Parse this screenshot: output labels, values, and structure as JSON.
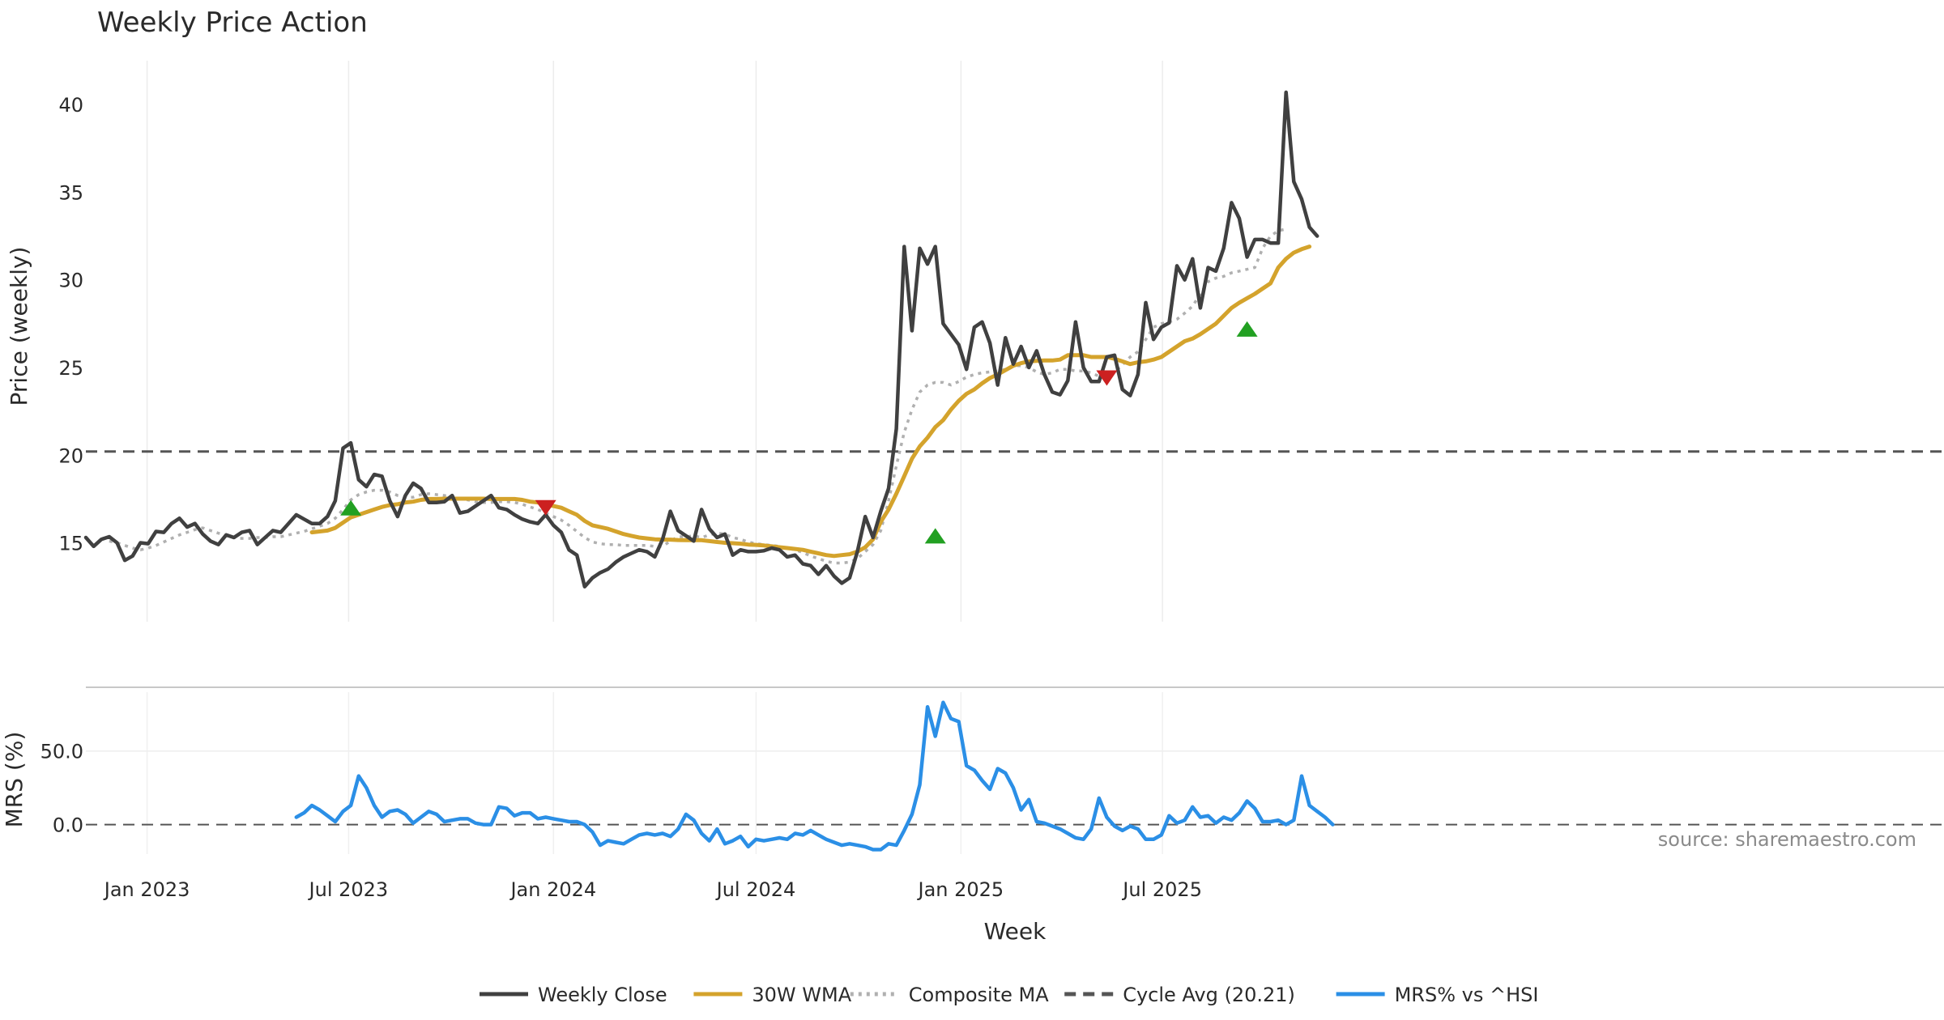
{
  "chart_data": {
    "type": "line",
    "title": "Weekly Price Action",
    "xlabel": "Week",
    "source": "source: sharemaestro.com",
    "x_start": "2022-11-07",
    "x_interval_days": 7,
    "x_ticks": [
      {
        "date": "2023-01-01",
        "label": "Jan 2023"
      },
      {
        "date": "2023-07-01",
        "label": "Jul 2023"
      },
      {
        "date": "2024-01-01",
        "label": "Jan 2024"
      },
      {
        "date": "2024-07-01",
        "label": "Jul 2024"
      },
      {
        "date": "2025-01-01",
        "label": "Jan 2025"
      },
      {
        "date": "2025-07-01",
        "label": "Jul 2025"
      }
    ],
    "price_panel": {
      "ylabel": "Price (weekly)",
      "ylim": [
        10.5,
        42.5
      ],
      "yticks": [
        15,
        20,
        25,
        30,
        35,
        40
      ],
      "grid": "vertical",
      "series": [
        {
          "name": "Weekly Close",
          "color": "#404040",
          "style": "solid",
          "values": [
            15.3,
            14.8,
            15.2,
            15.35,
            15.0,
            14.0,
            14.25,
            15.0,
            14.95,
            15.65,
            15.6,
            16.1,
            16.4,
            15.9,
            16.1,
            15.5,
            15.1,
            14.9,
            15.45,
            15.3,
            15.6,
            15.7,
            14.9,
            15.3,
            15.7,
            15.6,
            16.1,
            16.6,
            16.35,
            16.1,
            16.1,
            16.5,
            17.4,
            20.4,
            20.7,
            18.6,
            18.2,
            18.9,
            18.8,
            17.4,
            16.5,
            17.7,
            18.4,
            18.1,
            17.3,
            17.3,
            17.35,
            17.7,
            16.7,
            16.8,
            17.1,
            17.4,
            17.7,
            17.0,
            16.9,
            16.6,
            16.35,
            16.2,
            16.1,
            16.6,
            16.0,
            15.6,
            14.6,
            14.3,
            12.5,
            13.0,
            13.3,
            13.5,
            13.9,
            14.2,
            14.4,
            14.6,
            14.5,
            14.2,
            15.2,
            16.8,
            15.7,
            15.4,
            15.1,
            16.9,
            15.8,
            15.3,
            15.5,
            14.3,
            14.6,
            14.5,
            14.5,
            14.55,
            14.7,
            14.6,
            14.2,
            14.3,
            13.8,
            13.7,
            13.2,
            13.7,
            13.1,
            12.7,
            13.0,
            14.5,
            16.5,
            15.3,
            16.8,
            18.1,
            21.5,
            31.9,
            27.1,
            31.8,
            30.9,
            31.9,
            27.5,
            26.9,
            26.3,
            24.9,
            27.3,
            27.6,
            26.4,
            24.0,
            26.7,
            25.2,
            26.2,
            25.0,
            25.95,
            24.6,
            23.6,
            23.45,
            24.25,
            27.6,
            25.0,
            24.2,
            24.2,
            25.6,
            25.7,
            23.75,
            23.4,
            24.6,
            28.7,
            26.6,
            27.3,
            27.55,
            30.8,
            30.0,
            31.2,
            28.4,
            30.7,
            30.5,
            31.8,
            34.4,
            33.5,
            31.3,
            32.3,
            32.3,
            32.1,
            32.1,
            40.7,
            35.6,
            34.6,
            33.0,
            32.5
          ]
        },
        {
          "name": "30W WMA",
          "color": "#d4a32c",
          "style": "solid",
          "start_index": 29,
          "values": [
            15.6,
            15.65,
            15.7,
            15.85,
            16.15,
            16.45,
            16.6,
            16.75,
            16.9,
            17.05,
            17.15,
            17.2,
            17.3,
            17.35,
            17.45,
            17.5,
            17.5,
            17.52,
            17.52,
            17.52,
            17.52,
            17.52,
            17.52,
            17.5,
            17.5,
            17.5,
            17.5,
            17.45,
            17.35,
            17.3,
            17.2,
            17.1,
            17.0,
            16.8,
            16.6,
            16.25,
            16.0,
            15.9,
            15.8,
            15.65,
            15.5,
            15.4,
            15.3,
            15.25,
            15.2,
            15.18,
            15.18,
            15.16,
            15.15,
            15.15,
            15.15,
            15.1,
            15.05,
            15.0,
            14.98,
            14.95,
            14.9,
            14.88,
            14.85,
            14.8,
            14.75,
            14.7,
            14.65,
            14.6,
            14.5,
            14.4,
            14.3,
            14.25,
            14.3,
            14.35,
            14.5,
            14.75,
            15.2,
            16.2,
            16.9,
            17.8,
            18.8,
            19.8,
            20.5,
            21.0,
            21.6,
            22.0,
            22.6,
            23.1,
            23.5,
            23.75,
            24.1,
            24.4,
            24.6,
            24.85,
            25.1,
            25.25,
            25.35,
            25.38,
            25.4,
            25.4,
            25.45,
            25.7,
            25.7,
            25.7,
            25.6,
            25.6,
            25.6,
            25.5,
            25.35,
            25.2,
            25.3,
            25.35,
            25.45,
            25.6,
            25.9,
            26.2,
            26.5,
            26.65,
            26.9,
            27.2,
            27.5,
            27.95,
            28.4,
            28.7,
            28.95,
            29.2,
            29.5,
            29.8,
            30.7,
            31.2,
            31.55,
            31.75,
            31.9
          ]
        },
        {
          "name": "Composite MA",
          "color": "#b0b0b0",
          "style": "dotted",
          "start_index": 3,
          "values": [
            15.1,
            15.0,
            14.85,
            14.7,
            14.6,
            14.7,
            14.85,
            15.05,
            15.25,
            15.45,
            15.6,
            15.75,
            15.85,
            15.7,
            15.55,
            15.4,
            15.3,
            15.25,
            15.25,
            15.3,
            15.3,
            15.35,
            15.35,
            15.45,
            15.55,
            15.65,
            15.8,
            15.95,
            16.1,
            16.4,
            16.9,
            17.45,
            17.75,
            17.9,
            18.0,
            18.0,
            17.9,
            17.7,
            17.6,
            17.6,
            17.75,
            17.8,
            17.75,
            17.7,
            17.6,
            17.5,
            17.45,
            17.35,
            17.3,
            17.3,
            17.35,
            17.35,
            17.3,
            17.2,
            17.05,
            16.9,
            16.7,
            16.5,
            16.3,
            16.0,
            15.65,
            15.3,
            15.05,
            14.95,
            14.9,
            14.9,
            14.85,
            14.85,
            14.85,
            14.85,
            14.8,
            14.8,
            15.1,
            15.35,
            15.35,
            15.4,
            15.3,
            15.45,
            15.55,
            15.5,
            15.3,
            15.2,
            15.05,
            14.95,
            14.9,
            14.85,
            14.8,
            14.7,
            14.6,
            14.45,
            14.25,
            14.1,
            13.95,
            13.85,
            13.85,
            13.9,
            14.1,
            14.5,
            14.9,
            15.7,
            17.4,
            19.4,
            21.3,
            22.6,
            23.6,
            24.0,
            24.15,
            24.15,
            24.0,
            24.2,
            24.45,
            24.6,
            24.7,
            24.75,
            24.8,
            24.9,
            25.1,
            25.1,
            25.0,
            24.75,
            24.6,
            24.7,
            24.9,
            24.9,
            24.8,
            24.8,
            24.7,
            24.5,
            24.55,
            24.75,
            25.15,
            25.6,
            25.9,
            26.6,
            27.3,
            27.5,
            27.6,
            27.75,
            28.1,
            28.5,
            29.2,
            29.9,
            30.1,
            30.2,
            30.4,
            30.5,
            30.6,
            30.7,
            31.8,
            32.5,
            32.8,
            32.9
          ]
        },
        {
          "name": "Cycle Avg (20.21)",
          "color": "#555555",
          "style": "dashed",
          "value": 20.21
        }
      ],
      "signals": [
        {
          "index": 34,
          "value": 17.0,
          "direction": "up",
          "color": "#22a022"
        },
        {
          "index": 59,
          "value": 17.0,
          "direction": "down",
          "color": "#cc2020"
        },
        {
          "index": 109,
          "value": 15.4,
          "direction": "up",
          "color": "#22a022"
        },
        {
          "index": 131,
          "value": 24.4,
          "direction": "down",
          "color": "#cc2020"
        },
        {
          "index": 149,
          "value": 27.2,
          "direction": "up",
          "color": "#22a022"
        }
      ]
    },
    "mrs_panel": {
      "ylabel": "MRS (%)",
      "ylim": [
        -20,
        90
      ],
      "yticks": [
        0.0,
        50.0
      ],
      "ytick_labels": [
        "0.0",
        "50.0"
      ],
      "zero_line": "dashed",
      "series": [
        {
          "name": "MRS% vs ^HSI",
          "color": "#2b8fe6",
          "style": "solid",
          "start_index": 27,
          "values": [
            5,
            8,
            13,
            10,
            6,
            2,
            9,
            13,
            33,
            25,
            13,
            5,
            9,
            10,
            7,
            1,
            5,
            9,
            7,
            2,
            3,
            4,
            4,
            1,
            0,
            0,
            12,
            11,
            6,
            8,
            8,
            4,
            5,
            4,
            3,
            2,
            2,
            0,
            -5,
            -14,
            -11,
            -12,
            -13,
            -10,
            -7,
            -6,
            -7,
            -6,
            -8,
            -3,
            7,
            3,
            -6,
            -11,
            -3,
            -13,
            -11,
            -8,
            -15,
            -10,
            -11,
            -10,
            -9,
            -10,
            -6,
            -7,
            -4,
            -7,
            -10,
            -12,
            -14,
            -13,
            -14,
            -15,
            -17,
            -17,
            -13,
            -14,
            -4,
            7,
            27,
            80,
            60,
            83,
            72,
            70,
            40,
            37,
            30,
            24,
            38,
            35,
            25,
            10,
            17,
            2,
            1,
            -1,
            -3,
            -6,
            -9,
            -10,
            -3,
            18,
            5,
            -1,
            -4,
            -1,
            -3,
            -10,
            -10,
            -7,
            6,
            1,
            3,
            12,
            5,
            6,
            1,
            5,
            3,
            8,
            16,
            11,
            2,
            2,
            3,
            0,
            3,
            33,
            13,
            9,
            5,
            0
          ]
        }
      ]
    },
    "legend": {
      "placement": "bottom-center",
      "entries": [
        {
          "label": "Weekly Close",
          "color": "#404040",
          "style": "solid"
        },
        {
          "label": "30W WMA",
          "color": "#d4a32c",
          "style": "solid"
        },
        {
          "label": "Composite MA",
          "color": "#b0b0b0",
          "style": "dotted"
        },
        {
          "label": "Cycle Avg (20.21)",
          "color": "#555555",
          "style": "dashed"
        },
        {
          "label": "MRS% vs ^HSI",
          "color": "#2b8fe6",
          "style": "solid"
        }
      ]
    }
  }
}
